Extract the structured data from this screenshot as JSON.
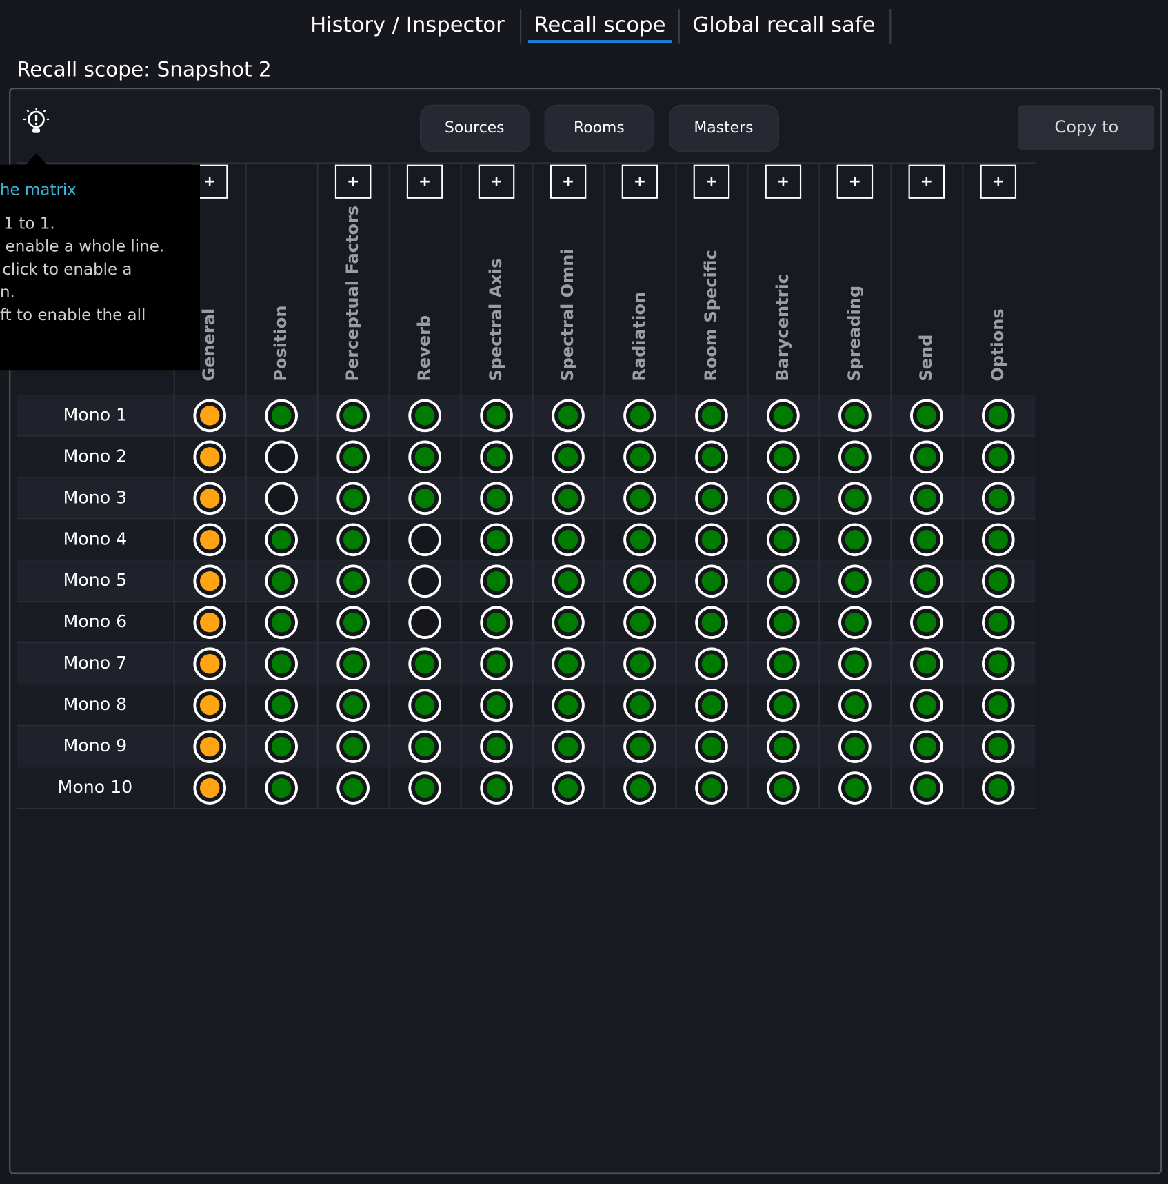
{
  "tabs": [
    {
      "label": "History / Inspector",
      "active": false
    },
    {
      "label": "Recall scope",
      "active": true
    },
    {
      "label": "Global recall safe",
      "active": false
    }
  ],
  "title": "Recall scope: Snapshot 2",
  "filter_buttons": [
    "Sources",
    "Rooms",
    "Masters"
  ],
  "copy_button": "Copy to",
  "tooltip": {
    "heading": "he matrix",
    "lines": [
      "1 to 1.",
      "enable a whole line.",
      "click to enable a",
      "n.",
      "ft to enable the all"
    ]
  },
  "matrix": {
    "add_label": "+",
    "columns": [
      {
        "label": "General",
        "add": true
      },
      {
        "label": "Position",
        "add": false
      },
      {
        "label": "Perceptual Factors",
        "add": true
      },
      {
        "label": "Reverb",
        "add": true
      },
      {
        "label": "Spectral Axis",
        "add": true
      },
      {
        "label": "Spectral Omni",
        "add": true
      },
      {
        "label": "Radiation",
        "add": true
      },
      {
        "label": "Room Specific",
        "add": true
      },
      {
        "label": "Barycentric",
        "add": true
      },
      {
        "label": "Spreading",
        "add": true
      },
      {
        "label": "Send",
        "add": true
      },
      {
        "label": "Options",
        "add": true
      }
    ],
    "rows": [
      {
        "label": "Mono 1",
        "cells": [
          "orange",
          "green",
          "green",
          "green",
          "green",
          "green",
          "green",
          "green",
          "green",
          "green",
          "green",
          "green"
        ]
      },
      {
        "label": "Mono 2",
        "cells": [
          "orange",
          "off",
          "green",
          "green",
          "green",
          "green",
          "green",
          "green",
          "green",
          "green",
          "green",
          "green"
        ]
      },
      {
        "label": "Mono 3",
        "cells": [
          "orange",
          "off",
          "green",
          "green",
          "green",
          "green",
          "green",
          "green",
          "green",
          "green",
          "green",
          "green"
        ]
      },
      {
        "label": "Mono 4",
        "cells": [
          "orange",
          "green",
          "green",
          "off",
          "green",
          "green",
          "green",
          "green",
          "green",
          "green",
          "green",
          "green"
        ]
      },
      {
        "label": "Mono 5",
        "cells": [
          "orange",
          "green",
          "green",
          "off",
          "green",
          "green",
          "green",
          "green",
          "green",
          "green",
          "green",
          "green"
        ]
      },
      {
        "label": "Mono 6",
        "cells": [
          "orange",
          "green",
          "green",
          "off",
          "green",
          "green",
          "green",
          "green",
          "green",
          "green",
          "green",
          "green"
        ]
      },
      {
        "label": "Mono 7",
        "cells": [
          "orange",
          "green",
          "green",
          "green",
          "green",
          "green",
          "green",
          "green",
          "green",
          "green",
          "green",
          "green"
        ]
      },
      {
        "label": "Mono 8",
        "cells": [
          "orange",
          "green",
          "green",
          "green",
          "green",
          "green",
          "green",
          "green",
          "green",
          "green",
          "green",
          "green"
        ]
      },
      {
        "label": "Mono 9",
        "cells": [
          "orange",
          "green",
          "green",
          "green",
          "green",
          "green",
          "green",
          "green",
          "green",
          "green",
          "green",
          "green"
        ]
      },
      {
        "label": "Mono 10",
        "cells": [
          "orange",
          "green",
          "green",
          "green",
          "green",
          "green",
          "green",
          "green",
          "green",
          "green",
          "green",
          "green"
        ]
      }
    ]
  }
}
